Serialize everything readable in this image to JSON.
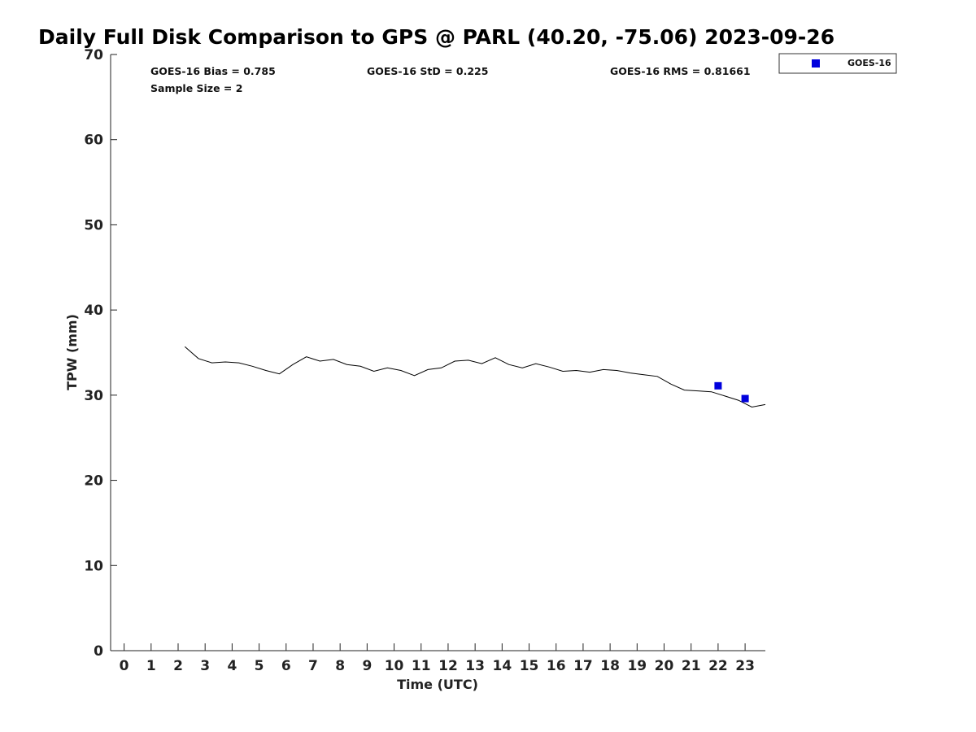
{
  "chart_data": {
    "type": "line",
    "title": "Daily Full Disk Comparison to GPS @ PARL (40.20, -75.06) 2023-09-26",
    "xlabel": "Time (UTC)",
    "ylabel": "TPW (mm)",
    "xlim": [
      -0.5,
      23.75
    ],
    "ylim": [
      0,
      70
    ],
    "x_ticks": [
      0,
      1,
      2,
      3,
      4,
      5,
      6,
      7,
      8,
      9,
      10,
      11,
      12,
      13,
      14,
      15,
      16,
      17,
      18,
      19,
      20,
      21,
      22,
      23
    ],
    "y_ticks": [
      0,
      10,
      20,
      30,
      40,
      50,
      60,
      70
    ],
    "grid": false,
    "legend_position": "top-right, outside plot",
    "series": [
      {
        "style": "line",
        "color": "#000000",
        "x": [
          2.25,
          2.75,
          3.25,
          3.75,
          4.25,
          4.75,
          5.25,
          5.75,
          6.25,
          6.75,
          7.25,
          7.75,
          8.25,
          8.75,
          9.25,
          9.75,
          10.25,
          10.75,
          11.25,
          11.75,
          12.25,
          12.75,
          13.25,
          13.75,
          14.25,
          14.75,
          15.25,
          15.75,
          16.25,
          16.75,
          17.25,
          17.75,
          18.25,
          18.75,
          19.25,
          19.75,
          20.25,
          20.75,
          21.25,
          21.75,
          22.25,
          22.75,
          23.25,
          23.75
        ],
        "y": [
          35.7,
          34.3,
          33.8,
          33.9,
          33.8,
          33.4,
          32.9,
          32.5,
          33.6,
          34.5,
          34.0,
          34.2,
          33.6,
          33.4,
          32.8,
          33.2,
          32.9,
          32.3,
          33.0,
          33.2,
          34.0,
          34.1,
          33.7,
          34.4,
          33.6,
          33.2,
          33.7,
          33.3,
          32.8,
          32.9,
          32.7,
          33.0,
          32.9,
          32.6,
          32.4,
          32.2,
          31.3,
          30.6,
          30.5,
          30.4,
          29.9,
          29.4,
          28.6,
          28.9
        ]
      },
      {
        "name": "GOES-16",
        "style": "marker",
        "marker": "square",
        "color": "#0000dd",
        "x": [
          22,
          23
        ],
        "y": [
          31.1,
          29.6
        ]
      }
    ],
    "annotations": {
      "bias": "GOES-16 Bias = 0.785",
      "std": "GOES-16 StD = 0.225",
      "rms": "GOES-16 RMS = 0.81661",
      "sample_size": "Sample Size = 2"
    },
    "legend": [
      {
        "label": "GOES-16",
        "color": "#0000dd",
        "marker": "square"
      }
    ]
  }
}
